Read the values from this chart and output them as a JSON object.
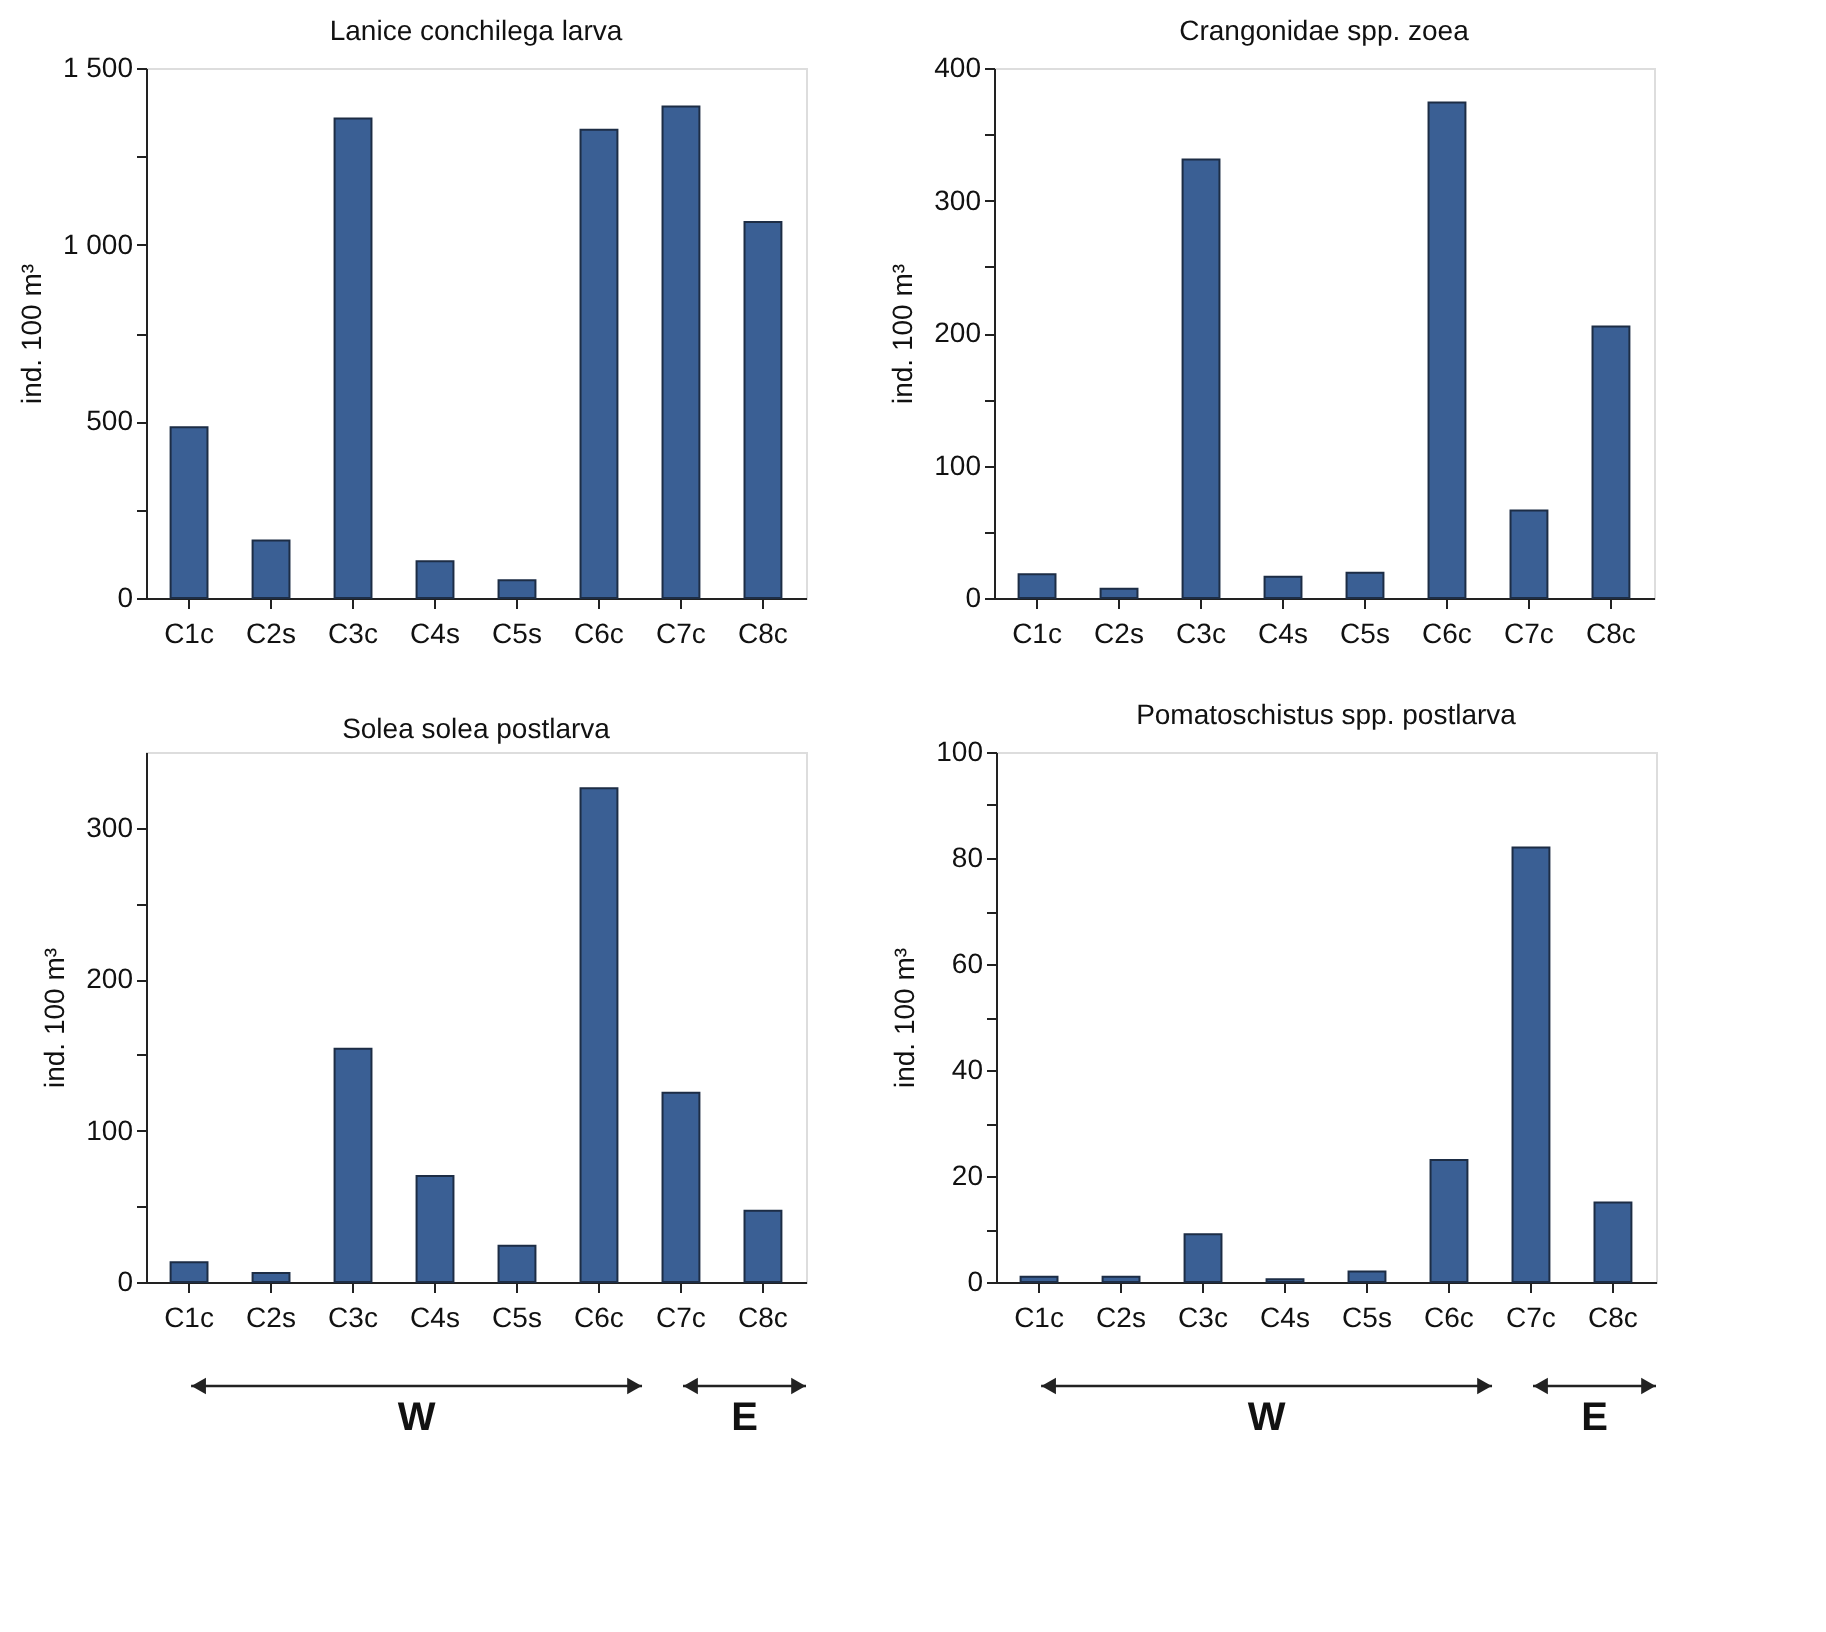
{
  "chart_data": [
    {
      "type": "bar",
      "title": "Lanice conchilega larva",
      "ylabel": "ind. 100 m³",
      "categories": [
        "C1c",
        "C2s",
        "C3c",
        "C4s",
        "C5s",
        "C6c",
        "C7c",
        "C8c"
      ],
      "color": "#3a5f94",
      "values": [
        483,
        163,
        1357,
        104,
        50,
        1325,
        1391,
        1064
      ],
      "ylim": [
        0,
        1500
      ],
      "yticks": [
        0,
        {
          "value": 250,
          "label": null
        },
        500,
        {
          "value": 750,
          "label": null
        },
        {
          "value": 1000,
          "label": "1 000"
        },
        {
          "value": 1250,
          "label": null
        },
        {
          "value": 1500,
          "label": "1 500"
        }
      ],
      "grid": false
    },
    {
      "type": "bar",
      "title": "Crangonidae spp. zoea",
      "ylabel": "ind. 100 m³",
      "categories": [
        "C1c",
        "C2s",
        "C3c",
        "C4s",
        "C5s",
        "C6c",
        "C7c",
        "C8c"
      ],
      "color": "#3a5f94",
      "values": [
        18,
        7,
        331,
        16,
        19,
        374,
        66,
        205
      ],
      "ylim": [
        0,
        400
      ],
      "yticks": [
        0,
        {
          "value": 50,
          "label": null
        },
        100,
        {
          "value": 150,
          "label": null
        },
        200,
        {
          "value": 250,
          "label": null
        },
        300,
        {
          "value": 350,
          "label": null
        },
        400
      ],
      "grid": false
    },
    {
      "type": "bar",
      "title": "Solea solea postlarva",
      "ylabel": "ind. 100 m³",
      "categories": [
        "C1c",
        "C2s",
        "C3c",
        "C4s",
        "C5s",
        "C6c",
        "C7c",
        "C8c"
      ],
      "color": "#3a5f94",
      "values": [
        13,
        6,
        154,
        70,
        24,
        326,
        125,
        47
      ],
      "ylim": [
        0,
        350
      ],
      "yticks": [
        0,
        {
          "value": 50,
          "label": null
        },
        100,
        {
          "value": 150,
          "label": null
        },
        200,
        {
          "value": 250,
          "label": null
        },
        300
      ],
      "grid": false,
      "annotations": [
        "W",
        "E"
      ]
    },
    {
      "type": "bar",
      "title": "Pomatoschistus spp. postlarva",
      "ylabel": "ind. 100 m³",
      "categories": [
        "C1c",
        "C2s",
        "C3c",
        "C4s",
        "C5s",
        "C6c",
        "C7c",
        "C8c"
      ],
      "color": "#3a5f94",
      "values": [
        1,
        1,
        9,
        0.5,
        2,
        23,
        82,
        15
      ],
      "ylim": [
        0,
        100
      ],
      "yticks": [
        0,
        {
          "value": 10,
          "label": null
        },
        20,
        {
          "value": 30,
          "label": null
        },
        40,
        {
          "value": 50,
          "label": null
        },
        60,
        {
          "value": 70,
          "label": null
        },
        80,
        {
          "value": 90,
          "label": null
        },
        100
      ],
      "grid": false,
      "annotations": [
        "W",
        "E"
      ]
    }
  ]
}
